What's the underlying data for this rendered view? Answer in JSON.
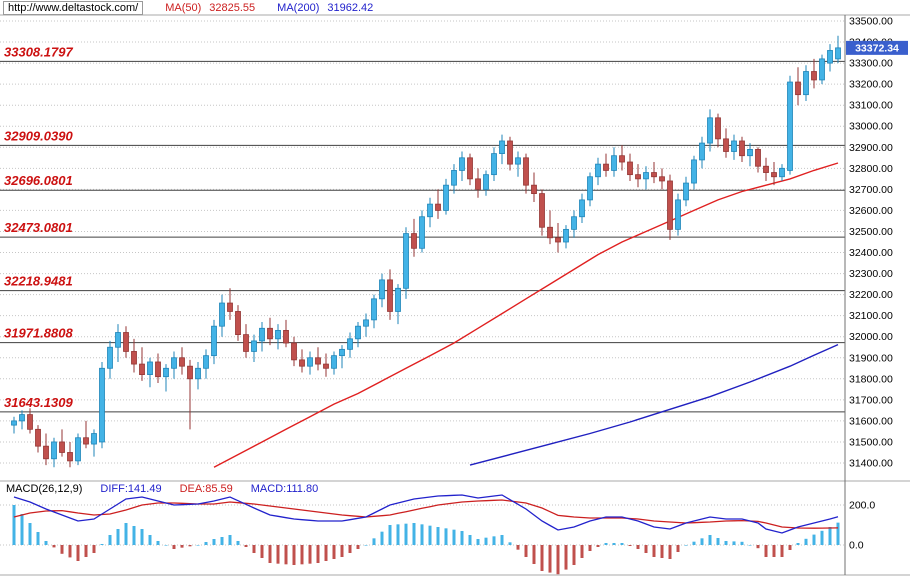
{
  "header": {
    "url": "http://www.deltastock.com/",
    "ma50_label": "MA(50)",
    "ma50_value": "32825.55",
    "ma200_label": "MA(200)",
    "ma200_value": "31962.42"
  },
  "colors": {
    "up_candle": "#43b3e6",
    "up_stroke": "#1f85b8",
    "down_candle": "#c0504d",
    "down_stroke": "#943634",
    "ma50": "#e02020",
    "ma200": "#2020c0",
    "level_text": "#cc1111",
    "level_line": "#404040",
    "grid": "#c6c6c6",
    "axis_text": "#000000",
    "badge_bg": "#3a5fcd",
    "badge_text": "#ffffff",
    "macd_diff": "#2222cc",
    "macd_dea": "#cc2020",
    "border": "#a8a8a8",
    "axis_line": "#707070"
  },
  "price_axis": {
    "last_price": "33372.34"
  },
  "levels": [
    {
      "label": "33308.1797",
      "value": 33308.1797
    },
    {
      "label": "32909.0390",
      "value": 32909.039
    },
    {
      "label": "32696.0801",
      "value": 32696.0801
    },
    {
      "label": "32473.0801",
      "value": 32473.0801
    },
    {
      "label": "32218.9481",
      "value": 32218.9481
    },
    {
      "label": "31971.8808",
      "value": 31971.8808
    },
    {
      "label": "31643.1309",
      "value": 31643.1309
    }
  ],
  "chart_data": {
    "type": "candlestick",
    "title": "Deltastock price chart with MA(50), MA(200) and MACD(26,12,9)",
    "ylim": [
      31400,
      33500
    ],
    "y_tick_step": 100,
    "grid": "dotted-horizontal",
    "y_tick_labels": [
      "33500.00",
      "33400.00",
      "33300.00",
      "33200.00",
      "33100.00",
      "33000.00",
      "32900.00",
      "32800.00",
      "32700.00",
      "32600.00",
      "32500.00",
      "32400.00",
      "32300.00",
      "32200.00",
      "32100.00",
      "32000.00",
      "31900.00",
      "31800.00",
      "31700.00",
      "31600.00",
      "31500.00",
      "31400.00"
    ],
    "candles": [
      [
        31580,
        31620,
        31540,
        31600
      ],
      [
        31600,
        31650,
        31560,
        31630
      ],
      [
        31630,
        31660,
        31540,
        31560
      ],
      [
        31560,
        31580,
        31450,
        31480
      ],
      [
        31480,
        31540,
        31390,
        31420
      ],
      [
        31420,
        31520,
        31380,
        31500
      ],
      [
        31500,
        31560,
        31430,
        31450
      ],
      [
        31450,
        31500,
        31380,
        31410
      ],
      [
        31410,
        31540,
        31390,
        31520
      ],
      [
        31520,
        31600,
        31470,
        31490
      ],
      [
        31490,
        31560,
        31430,
        31540
      ],
      [
        31500,
        31880,
        31470,
        31850
      ],
      [
        31850,
        31980,
        31800,
        31950
      ],
      [
        31950,
        32060,
        31880,
        32020
      ],
      [
        32020,
        32050,
        31900,
        31930
      ],
      [
        31930,
        31990,
        31830,
        31870
      ],
      [
        31870,
        31950,
        31790,
        31820
      ],
      [
        31820,
        31900,
        31760,
        31880
      ],
      [
        31880,
        31920,
        31780,
        31810
      ],
      [
        31810,
        31870,
        31740,
        31850
      ],
      [
        31850,
        31930,
        31800,
        31900
      ],
      [
        31900,
        31950,
        31820,
        31860
      ],
      [
        31860,
        31890,
        31560,
        31800
      ],
      [
        31800,
        31880,
        31750,
        31850
      ],
      [
        31850,
        31940,
        31800,
        31910
      ],
      [
        31910,
        32080,
        31870,
        32050
      ],
      [
        32050,
        32200,
        32000,
        32160
      ],
      [
        32160,
        32230,
        32080,
        32120
      ],
      [
        32120,
        32150,
        31980,
        32010
      ],
      [
        32010,
        32060,
        31900,
        31930
      ],
      [
        31930,
        32010,
        31880,
        31980
      ],
      [
        31980,
        32070,
        31930,
        32040
      ],
      [
        32040,
        32090,
        31960,
        31990
      ],
      [
        31990,
        32060,
        31940,
        32030
      ],
      [
        32030,
        32080,
        31950,
        31970
      ],
      [
        31970,
        32000,
        31860,
        31890
      ],
      [
        31890,
        31940,
        31830,
        31860
      ],
      [
        31860,
        31930,
        31820,
        31900
      ],
      [
        31900,
        31950,
        31840,
        31870
      ],
      [
        31870,
        31920,
        31810,
        31850
      ],
      [
        31850,
        31930,
        31820,
        31910
      ],
      [
        31910,
        31960,
        31850,
        31940
      ],
      [
        31940,
        32020,
        31900,
        31990
      ],
      [
        31990,
        32070,
        31950,
        32050
      ],
      [
        32050,
        32110,
        32000,
        32080
      ],
      [
        32080,
        32200,
        32040,
        32180
      ],
      [
        32180,
        32300,
        32140,
        32270
      ],
      [
        32270,
        32320,
        32080,
        32120
      ],
      [
        32120,
        32250,
        32060,
        32230
      ],
      [
        32230,
        32520,
        32180,
        32490
      ],
      [
        32490,
        32560,
        32380,
        32420
      ],
      [
        32420,
        32600,
        32400,
        32570
      ],
      [
        32570,
        32660,
        32520,
        32630
      ],
      [
        32630,
        32700,
        32560,
        32600
      ],
      [
        32600,
        32750,
        32580,
        32720
      ],
      [
        32720,
        32820,
        32680,
        32790
      ],
      [
        32790,
        32880,
        32740,
        32850
      ],
      [
        32850,
        32870,
        32720,
        32750
      ],
      [
        32750,
        32800,
        32660,
        32700
      ],
      [
        32700,
        32790,
        32670,
        32770
      ],
      [
        32770,
        32900,
        32740,
        32870
      ],
      [
        32870,
        32960,
        32820,
        32930
      ],
      [
        32930,
        32950,
        32790,
        32820
      ],
      [
        32820,
        32880,
        32760,
        32850
      ],
      [
        32850,
        32870,
        32680,
        32720
      ],
      [
        32720,
        32780,
        32640,
        32680
      ],
      [
        32680,
        32700,
        32480,
        32520
      ],
      [
        32520,
        32600,
        32440,
        32470
      ],
      [
        32470,
        32540,
        32400,
        32450
      ],
      [
        32450,
        32530,
        32420,
        32510
      ],
      [
        32510,
        32600,
        32470,
        32570
      ],
      [
        32570,
        32680,
        32540,
        32650
      ],
      [
        32650,
        32780,
        32620,
        32760
      ],
      [
        32760,
        32850,
        32720,
        32820
      ],
      [
        32820,
        32870,
        32760,
        32790
      ],
      [
        32790,
        32900,
        32760,
        32860
      ],
      [
        32860,
        32910,
        32790,
        32830
      ],
      [
        32830,
        32870,
        32740,
        32770
      ],
      [
        32770,
        32820,
        32710,
        32750
      ],
      [
        32750,
        32810,
        32700,
        32780
      ],
      [
        32780,
        32830,
        32730,
        32760
      ],
      [
        32760,
        32800,
        32700,
        32740
      ],
      [
        32740,
        32770,
        32460,
        32510
      ],
      [
        32510,
        32680,
        32480,
        32650
      ],
      [
        32650,
        32760,
        32620,
        32730
      ],
      [
        32730,
        32860,
        32700,
        32840
      ],
      [
        32840,
        32950,
        32800,
        32920
      ],
      [
        32920,
        33080,
        32880,
        33040
      ],
      [
        33040,
        33060,
        32900,
        32940
      ],
      [
        32940,
        32990,
        32850,
        32880
      ],
      [
        32880,
        32960,
        32840,
        32930
      ],
      [
        32930,
        32950,
        32830,
        32860
      ],
      [
        32860,
        32920,
        32810,
        32890
      ],
      [
        32890,
        32900,
        32780,
        32810
      ],
      [
        32810,
        32850,
        32740,
        32780
      ],
      [
        32780,
        32830,
        32720,
        32760
      ],
      [
        32760,
        32820,
        32740,
        32800
      ],
      [
        32790,
        33240,
        32770,
        33210
      ],
      [
        33210,
        33280,
        33100,
        33150
      ],
      [
        33150,
        33290,
        33120,
        33260
      ],
      [
        33260,
        33320,
        33180,
        33220
      ],
      [
        33220,
        33340,
        33200,
        33320
      ],
      [
        33300,
        33390,
        33260,
        33360
      ],
      [
        33320,
        33430,
        33300,
        33372.34
      ]
    ],
    "ma50_points": [
      [
        25,
        31380
      ],
      [
        28,
        31440
      ],
      [
        31,
        31500
      ],
      [
        34,
        31560
      ],
      [
        37,
        31620
      ],
      [
        40,
        31680
      ],
      [
        43,
        31730
      ],
      [
        46,
        31790
      ],
      [
        49,
        31850
      ],
      [
        52,
        31910
      ],
      [
        55,
        31970
      ],
      [
        58,
        32040
      ],
      [
        61,
        32110
      ],
      [
        64,
        32180
      ],
      [
        67,
        32250
      ],
      [
        70,
        32320
      ],
      [
        73,
        32390
      ],
      [
        76,
        32450
      ],
      [
        79,
        32500
      ],
      [
        82,
        32550
      ],
      [
        85,
        32600
      ],
      [
        88,
        32650
      ],
      [
        91,
        32690
      ],
      [
        94,
        32720
      ],
      [
        97,
        32750
      ],
      [
        100,
        32790
      ],
      [
        103,
        32825.55
      ]
    ],
    "ma200_points": [
      [
        57,
        31390
      ],
      [
        62,
        31440
      ],
      [
        67,
        31490
      ],
      [
        72,
        31540
      ],
      [
        77,
        31595
      ],
      [
        82,
        31655
      ],
      [
        87,
        31715
      ],
      [
        92,
        31785
      ],
      [
        97,
        31860
      ],
      [
        100,
        31912
      ],
      [
        103,
        31962.42
      ]
    ],
    "macd": {
      "name_label": "MACD(26,12,9)",
      "diff_label": "DIFF:141.49",
      "dea_label": "DEA:85.59",
      "macd_label": "MACD:111.80",
      "axis_ticks": [
        {
          "label": "200.0",
          "value": 200
        },
        {
          "label": "0.0",
          "value": 0
        }
      ],
      "hist_formula": "2*(DIFF-DEA)",
      "diff_points": [
        [
          0,
          240
        ],
        [
          2,
          215
        ],
        [
          4,
          180
        ],
        [
          6,
          150
        ],
        [
          8,
          120
        ],
        [
          10,
          130
        ],
        [
          12,
          180
        ],
        [
          14,
          230
        ],
        [
          16,
          240
        ],
        [
          18,
          220
        ],
        [
          20,
          200
        ],
        [
          23,
          205
        ],
        [
          25,
          220
        ],
        [
          27,
          240
        ],
        [
          30,
          185
        ],
        [
          32,
          150
        ],
        [
          35,
          130
        ],
        [
          38,
          120
        ],
        [
          41,
          120
        ],
        [
          44,
          140
        ],
        [
          47,
          200
        ],
        [
          50,
          230
        ],
        [
          53,
          245
        ],
        [
          56,
          250
        ],
        [
          58,
          235
        ],
        [
          61,
          250
        ],
        [
          64,
          180
        ],
        [
          66,
          120
        ],
        [
          68,
          75
        ],
        [
          70,
          90
        ],
        [
          72,
          120
        ],
        [
          74,
          140
        ],
        [
          76,
          140
        ],
        [
          78,
          120
        ],
        [
          80,
          90
        ],
        [
          82,
          80
        ],
        [
          84,
          110
        ],
        [
          87,
          140
        ],
        [
          89,
          130
        ],
        [
          91,
          130
        ],
        [
          93,
          110
        ],
        [
          94,
          80
        ],
        [
          96,
          60
        ],
        [
          98,
          90
        ],
        [
          100,
          110
        ],
        [
          102,
          130
        ],
        [
          103,
          141.49
        ]
      ],
      "dea_points": [
        [
          0,
          140
        ],
        [
          2,
          160
        ],
        [
          4,
          170
        ],
        [
          6,
          172
        ],
        [
          8,
          160
        ],
        [
          10,
          150
        ],
        [
          12,
          155
        ],
        [
          14,
          175
        ],
        [
          16,
          200
        ],
        [
          18,
          210
        ],
        [
          20,
          210
        ],
        [
          23,
          205
        ],
        [
          25,
          205
        ],
        [
          27,
          215
        ],
        [
          30,
          205
        ],
        [
          32,
          195
        ],
        [
          35,
          180
        ],
        [
          38,
          165
        ],
        [
          41,
          150
        ],
        [
          44,
          140
        ],
        [
          47,
          150
        ],
        [
          50,
          175
        ],
        [
          53,
          200
        ],
        [
          56,
          215
        ],
        [
          58,
          220
        ],
        [
          61,
          225
        ],
        [
          64,
          210
        ],
        [
          66,
          185
        ],
        [
          68,
          148
        ],
        [
          70,
          140
        ],
        [
          72,
          135
        ],
        [
          74,
          135
        ],
        [
          76,
          135
        ],
        [
          78,
          130
        ],
        [
          80,
          120
        ],
        [
          82,
          115
        ],
        [
          84,
          110
        ],
        [
          87,
          115
        ],
        [
          89,
          120
        ],
        [
          91,
          122
        ],
        [
          93,
          118
        ],
        [
          94,
          110
        ],
        [
          96,
          90
        ],
        [
          98,
          85
        ],
        [
          100,
          84
        ],
        [
          102,
          85
        ],
        [
          103,
          85.59
        ]
      ]
    }
  }
}
